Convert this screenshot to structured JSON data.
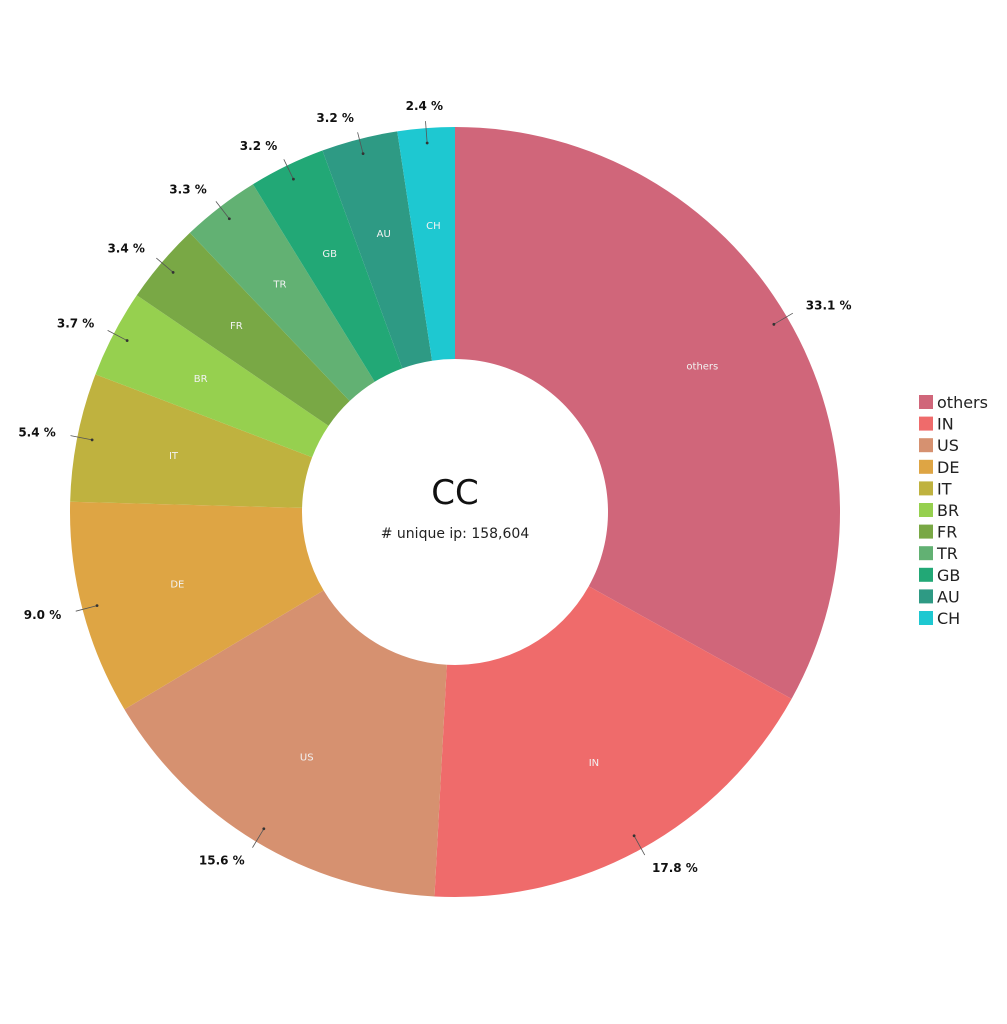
{
  "chart_data": {
    "type": "pie",
    "subtype": "donut",
    "center_title": "CC",
    "center_subtitle": "# unique ip: 158,604",
    "legend_position": "right",
    "slices": [
      {
        "label": "others",
        "value": 33.1,
        "pct_text": "33.1 %",
        "color": "#d0667a"
      },
      {
        "label": "IN",
        "value": 17.8,
        "pct_text": "17.8 %",
        "color": "#ef6b6b"
      },
      {
        "label": "US",
        "value": 15.6,
        "pct_text": "15.6 %",
        "color": "#d69170"
      },
      {
        "label": "DE",
        "value": 9.0,
        "pct_text": "9.0 %",
        "color": "#dea544"
      },
      {
        "label": "IT",
        "value": 5.4,
        "pct_text": "5.4 %",
        "color": "#bfb23f"
      },
      {
        "label": "BR",
        "value": 3.7,
        "pct_text": "3.7 %",
        "color": "#96d04f"
      },
      {
        "label": "FR",
        "value": 3.4,
        "pct_text": "3.4 %",
        "color": "#79a845"
      },
      {
        "label": "TR",
        "value": 3.3,
        "pct_text": "3.3 %",
        "color": "#62b173"
      },
      {
        "label": "GB",
        "value": 3.2,
        "pct_text": "3.2 %",
        "color": "#22a876"
      },
      {
        "label": "AU",
        "value": 3.2,
        "pct_text": "3.2 %",
        "color": "#2e9a84"
      },
      {
        "label": "CH",
        "value": 2.4,
        "pct_text": "2.4 %",
        "color": "#1ec8d1"
      }
    ]
  }
}
